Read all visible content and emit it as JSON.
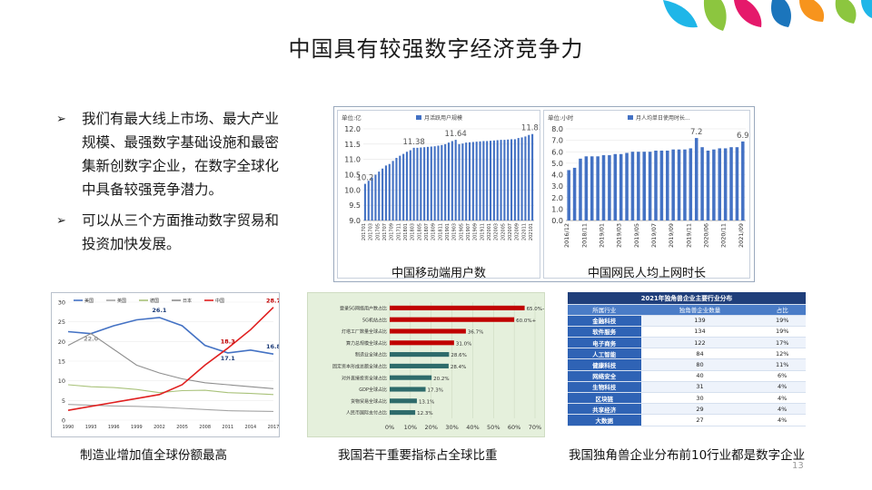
{
  "title": "中国具有较强数字经济竞争力",
  "page_number": "13",
  "bullets": [
    {
      "marker": "➢",
      "text": "我们有最大线上市场、最大产业规模、最强数字基础设施和最密集新创数字企业，在数字全球化中具备较强竞争潜力。"
    },
    {
      "marker": "➢",
      "text": "可以从三个方面推动数字贸易和投资加快发展。"
    }
  ],
  "colors": {
    "accent_blue": "#4472c4",
    "bar_red": "#c00000",
    "bar_teal": "#2e6b6b",
    "deco": [
      "#1fb6e8",
      "#8cc63f",
      "#e5196b",
      "#1b75bc",
      "#f7941d"
    ]
  },
  "chart_data": [
    {
      "type": "bar",
      "title": "",
      "caption": "中国移动端用户数",
      "unit_label": "单位:亿",
      "legend": [
        "月活跃用户规模"
      ],
      "ylabel": "",
      "ylim": [
        9.0,
        12.0
      ],
      "yticks": [
        "12.0",
        "11.5",
        "11.0",
        "10.5",
        "10.0",
        "9.5",
        "9.0"
      ],
      "first_x": "201701",
      "last_x": "202101",
      "annotations": [
        {
          "label": "10.2",
          "value": 10.2,
          "index": 0
        },
        {
          "label": "11.38",
          "value": 11.38,
          "index": 14
        },
        {
          "label": "11.64",
          "value": 11.64,
          "index": 26
        },
        {
          "label": "11.83",
          "value": 11.83,
          "index": 48
        }
      ],
      "values": [
        10.2,
        10.3,
        10.4,
        10.5,
        10.6,
        10.7,
        10.8,
        10.85,
        10.95,
        11.05,
        11.12,
        11.18,
        11.25,
        11.3,
        11.38,
        11.38,
        11.39,
        11.4,
        11.41,
        11.42,
        11.43,
        11.45,
        11.47,
        11.5,
        11.55,
        11.6,
        11.64,
        11.5,
        11.52,
        11.55,
        11.56,
        11.57,
        11.58,
        11.59,
        11.6,
        11.6,
        11.61,
        11.62,
        11.63,
        11.64,
        11.64,
        11.65,
        11.66,
        11.66,
        11.7,
        11.72,
        11.75,
        11.8,
        11.83
      ],
      "x_tick_labels": [
        "201701",
        "201703",
        "201705",
        "201707",
        "201709",
        "201711",
        "201801",
        "201803",
        "201805",
        "201807",
        "201809",
        "201811",
        "201901",
        "201903",
        "201905",
        "201907",
        "201909",
        "201911",
        "202001",
        "202003",
        "202005",
        "202007",
        "202009",
        "202011",
        "202101"
      ]
    },
    {
      "type": "bar",
      "title": "",
      "caption": "中国网民人均上网时长",
      "unit_label": "单位:小时",
      "legend": [
        "月人均单日使用时长..."
      ],
      "ylim": [
        0.0,
        8.0
      ],
      "yticks": [
        "8.0",
        "7.0",
        "6.0",
        "5.0",
        "4.0",
        "3.0",
        "2.0",
        "1.0",
        "0.0"
      ],
      "annotations": [
        {
          "label": "7.2",
          "value": 7.2,
          "index": 22
        },
        {
          "label": "6.9",
          "value": 6.9,
          "index": 30
        }
      ],
      "values": [
        4.4,
        4.6,
        5.4,
        5.6,
        5.6,
        5.6,
        5.7,
        5.7,
        5.8,
        5.8,
        5.9,
        6.0,
        6.0,
        6.0,
        6.0,
        6.1,
        6.1,
        6.1,
        6.2,
        6.2,
        6.2,
        6.3,
        7.2,
        6.4,
        6.1,
        6.2,
        6.3,
        6.3,
        6.4,
        6.4,
        6.9
      ],
      "x_tick_labels": [
        "2016/12",
        "2018/11",
        "2019/01",
        "2019/03",
        "2019/05",
        "2019/07",
        "2019/09",
        "2019/11",
        "2020/06",
        "2020/11",
        "2021/09"
      ]
    },
    {
      "type": "line",
      "caption": "制造业增加值全球份额最高",
      "ylim": [
        0,
        30
      ],
      "yticks": [
        "30",
        "25",
        "20",
        "15",
        "10",
        "5",
        "0"
      ],
      "x": [
        "1990",
        "1993",
        "1996",
        "1999",
        "2002",
        "2005",
        "2008",
        "2011",
        "2014",
        "2017"
      ],
      "series": [
        {
          "name": "美国",
          "color": "#4472c4",
          "values": [
            22.5,
            22.0,
            24.0,
            25.5,
            26.1,
            24.0,
            19.0,
            17.1,
            17.8,
            16.8
          ],
          "end_label": "16.8"
        },
        {
          "name": "英国",
          "color": "#a5a5a5",
          "values": [
            4.0,
            3.8,
            3.6,
            3.5,
            3.3,
            3.0,
            2.7,
            2.4,
            2.3,
            2.2
          ]
        },
        {
          "name": "德国",
          "color": "#a9c27a",
          "values": [
            9.0,
            8.5,
            8.3,
            7.8,
            7.0,
            7.5,
            7.6,
            7.0,
            6.8,
            6.5
          ]
        },
        {
          "name": "日本",
          "color": "#8e8e8e",
          "values": [
            19.0,
            22.0,
            18.0,
            14.0,
            12.0,
            10.5,
            9.5,
            9.0,
            8.5,
            8.0
          ],
          "end_label": ""
        },
        {
          "name": "中国",
          "color": "#e02020",
          "values": [
            2.5,
            3.5,
            4.5,
            5.5,
            6.5,
            9.0,
            14.0,
            18.3,
            23.0,
            28.7
          ],
          "end_label": "28.7"
        }
      ],
      "annotations": [
        "22.0",
        "26.1",
        "17.1",
        "18.3",
        "16.8",
        "28.7"
      ]
    },
    {
      "type": "bar",
      "orientation": "horizontal",
      "caption": "我国若干重要指标占全球比重",
      "xlim": [
        0,
        70
      ],
      "xticks": [
        "0%",
        "10%",
        "20%",
        "30%",
        "40%",
        "50%",
        "60%",
        "70%"
      ],
      "categories": [
        "登录5G网络用户数占比",
        "5G机站占比",
        "灯塔工厂数量全球占比",
        "算力总规模全球占比",
        "制造业全球占比",
        "固定资本形成总额全球占比",
        "对外直接投资全球占比",
        "GDP全球占比",
        "货物贸易全球占比",
        "人民币国际支付占比"
      ],
      "values": [
        65.0,
        60.0,
        36.7,
        31.0,
        28.6,
        28.4,
        20.2,
        17.3,
        13.1,
        12.3
      ],
      "value_labels": [
        "65.0%+",
        "60.0%+",
        "36.7%",
        "31.0%",
        "28.6%",
        "28.4%",
        "20.2%",
        "17.3%",
        "13.1%",
        "12.3%"
      ],
      "colors": [
        "#c00000",
        "#c00000",
        "#c00000",
        "#c00000",
        "#2e6b6b",
        "#2e6b6b",
        "#2e6b6b",
        "#2e6b6b",
        "#2e6b6b",
        "#2e6b6b"
      ]
    },
    {
      "type": "table",
      "caption": "我国独角兽企业分布前10行业都是数字企业",
      "title": "2021年独角兽企业主要行业分布",
      "columns": [
        "所属行业",
        "独角兽企业数量",
        "占比"
      ],
      "rows": [
        [
          "金融科技",
          "139",
          "19%"
        ],
        [
          "软件服务",
          "134",
          "19%"
        ],
        [
          "电子商务",
          "122",
          "17%"
        ],
        [
          "人工智能",
          "84",
          "12%"
        ],
        [
          "健康科技",
          "80",
          "11%"
        ],
        [
          "网络安全",
          "40",
          "6%"
        ],
        [
          "生物科技",
          "31",
          "4%"
        ],
        [
          "区块链",
          "30",
          "4%"
        ],
        [
          "共享经济",
          "29",
          "4%"
        ],
        [
          "大数据",
          "27",
          "4%"
        ]
      ]
    }
  ]
}
